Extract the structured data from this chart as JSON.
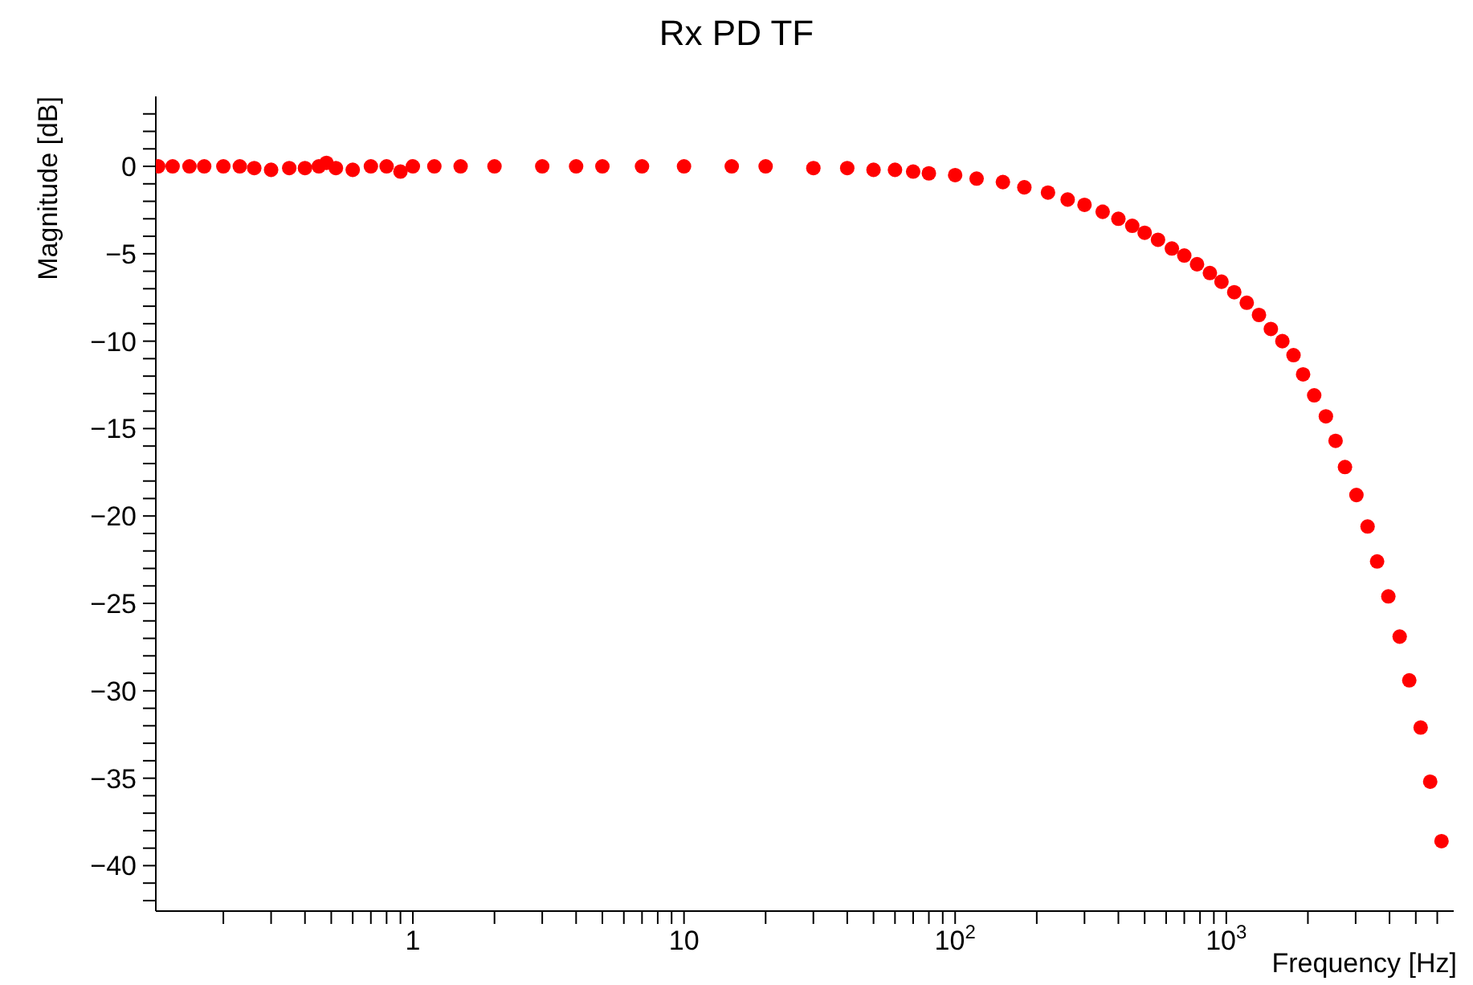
{
  "chart_data": {
    "type": "scatter",
    "title": "Rx PD TF",
    "xlabel": "Frequency [Hz]",
    "ylabel": "Magnitude [dB]",
    "log": "x",
    "grid": false,
    "legend": false,
    "marker": "circle",
    "xlim": [
      0.1127,
      6900
    ],
    "ylim": [
      -42.6,
      4
    ],
    "xticks": [
      {
        "value": 0.2,
        "label": null
      },
      {
        "value": 0.3,
        "label": null
      },
      {
        "value": 0.4,
        "label": null
      },
      {
        "value": 0.5,
        "label": null
      },
      {
        "value": 0.6,
        "label": null
      },
      {
        "value": 0.7,
        "label": null
      },
      {
        "value": 0.8,
        "label": null
      },
      {
        "value": 0.9,
        "label": null
      },
      1,
      {
        "value": 2,
        "label": null
      },
      {
        "value": 3,
        "label": null
      },
      {
        "value": 4,
        "label": null
      },
      {
        "value": 5,
        "label": null
      },
      {
        "value": 6,
        "label": null
      },
      {
        "value": 7,
        "label": null
      },
      {
        "value": 8,
        "label": null
      },
      {
        "value": 9,
        "label": null
      },
      10,
      {
        "value": 20,
        "label": null
      },
      {
        "value": 30,
        "label": null
      },
      {
        "value": 40,
        "label": null
      },
      {
        "value": 50,
        "label": null
      },
      {
        "value": 60,
        "label": null
      },
      {
        "value": 70,
        "label": null
      },
      {
        "value": 80,
        "label": null
      },
      {
        "value": 90,
        "label": null
      },
      {
        "value": 100,
        "label": "10$^{2}$"
      },
      {
        "value": 200,
        "label": null
      },
      {
        "value": 300,
        "label": null
      },
      {
        "value": 400,
        "label": null
      },
      {
        "value": 500,
        "label": null
      },
      {
        "value": 600,
        "label": null
      },
      {
        "value": 700,
        "label": null
      },
      {
        "value": 800,
        "label": null
      },
      {
        "value": 900,
        "label": null
      },
      {
        "value": 1000,
        "label": "10$^{3}$"
      },
      {
        "value": 2000,
        "label": null
      },
      {
        "value": 3000,
        "label": null
      },
      {
        "value": 4000,
        "label": null
      },
      {
        "value": 5000,
        "label": null
      },
      {
        "value": 6000,
        "label": null
      }
    ],
    "yticks": [
      {
        "value": 3,
        "label": null
      },
      {
        "value": 2,
        "label": null
      },
      {
        "value": 1,
        "label": null
      },
      0,
      {
        "value": -1,
        "label": null
      },
      {
        "value": -2,
        "label": null
      },
      {
        "value": -3,
        "label": null
      },
      {
        "value": -4,
        "label": null
      },
      -5,
      {
        "value": -6,
        "label": null
      },
      {
        "value": -7,
        "label": null
      },
      {
        "value": -8,
        "label": null
      },
      {
        "value": -9,
        "label": null
      },
      -10,
      {
        "value": -11,
        "label": null
      },
      {
        "value": -12,
        "label": null
      },
      {
        "value": -13,
        "label": null
      },
      {
        "value": -14,
        "label": null
      },
      -15,
      {
        "value": -16,
        "label": null
      },
      {
        "value": -17,
        "label": null
      },
      {
        "value": -18,
        "label": null
      },
      {
        "value": -19,
        "label": null
      },
      -20,
      {
        "value": -21,
        "label": null
      },
      {
        "value": -22,
        "label": null
      },
      {
        "value": -23,
        "label": null
      },
      {
        "value": -24,
        "label": null
      },
      -25,
      {
        "value": -26,
        "label": null
      },
      {
        "value": -27,
        "label": null
      },
      {
        "value": -28,
        "label": null
      },
      {
        "value": -29,
        "label": null
      },
      -30,
      {
        "value": -31,
        "label": null
      },
      {
        "value": -32,
        "label": null
      },
      {
        "value": -33,
        "label": null
      },
      {
        "value": -34,
        "label": null
      },
      -35,
      {
        "value": -36,
        "label": null
      },
      {
        "value": -37,
        "label": null
      },
      {
        "value": -38,
        "label": null
      },
      {
        "value": -39,
        "label": null
      },
      -40,
      {
        "value": -41,
        "label": null
      },
      {
        "value": -42,
        "label": null
      }
    ],
    "series": [
      {
        "color": "#ff0000",
        "x": [
          0.115,
          0.13,
          0.15,
          0.17,
          0.2,
          0.23,
          0.26,
          0.3,
          0.35,
          0.4,
          0.45,
          0.48,
          0.52,
          0.6,
          0.7,
          0.8,
          0.9,
          1,
          1.2,
          1.5,
          2,
          3,
          4,
          5,
          7,
          10,
          15,
          20,
          30,
          40,
          50,
          60,
          70,
          80,
          100,
          120,
          150,
          180,
          220,
          260,
          300,
          350,
          400,
          450,
          500,
          560,
          630,
          700,
          780,
          870,
          960,
          1070,
          1190,
          1320,
          1460,
          1610,
          1770,
          1920,
          2110,
          2330,
          2530,
          2740,
          3020,
          3320,
          3600,
          3960,
          4360,
          4730,
          5210,
          5650,
          6220
        ],
        "values": [
          0,
          0,
          0,
          0,
          0,
          0,
          -0.1,
          -0.2,
          -0.1,
          -0.1,
          0,
          0.2,
          -0.1,
          -0.2,
          0,
          0,
          -0.3,
          0,
          0,
          0,
          0,
          0,
          0,
          0,
          0,
          0,
          0,
          0,
          -0.1,
          -0.1,
          -0.2,
          -0.2,
          -0.3,
          -0.4,
          -0.5,
          -0.7,
          -0.9,
          -1.2,
          -1.5,
          -1.9,
          -2.2,
          -2.6,
          -3,
          -3.4,
          -3.8,
          -4.2,
          -4.7,
          -5.1,
          -5.6,
          -6.1,
          -6.6,
          -7.2,
          -7.8,
          -8.5,
          -9.3,
          -10,
          -10.8,
          -11.9,
          -13.1,
          -14.3,
          -15.7,
          -17.2,
          -18.8,
          -20.6,
          -22.6,
          -24.6,
          -26.9,
          -29.4,
          -32.1,
          -35.2,
          -38.6
        ]
      }
    ]
  }
}
